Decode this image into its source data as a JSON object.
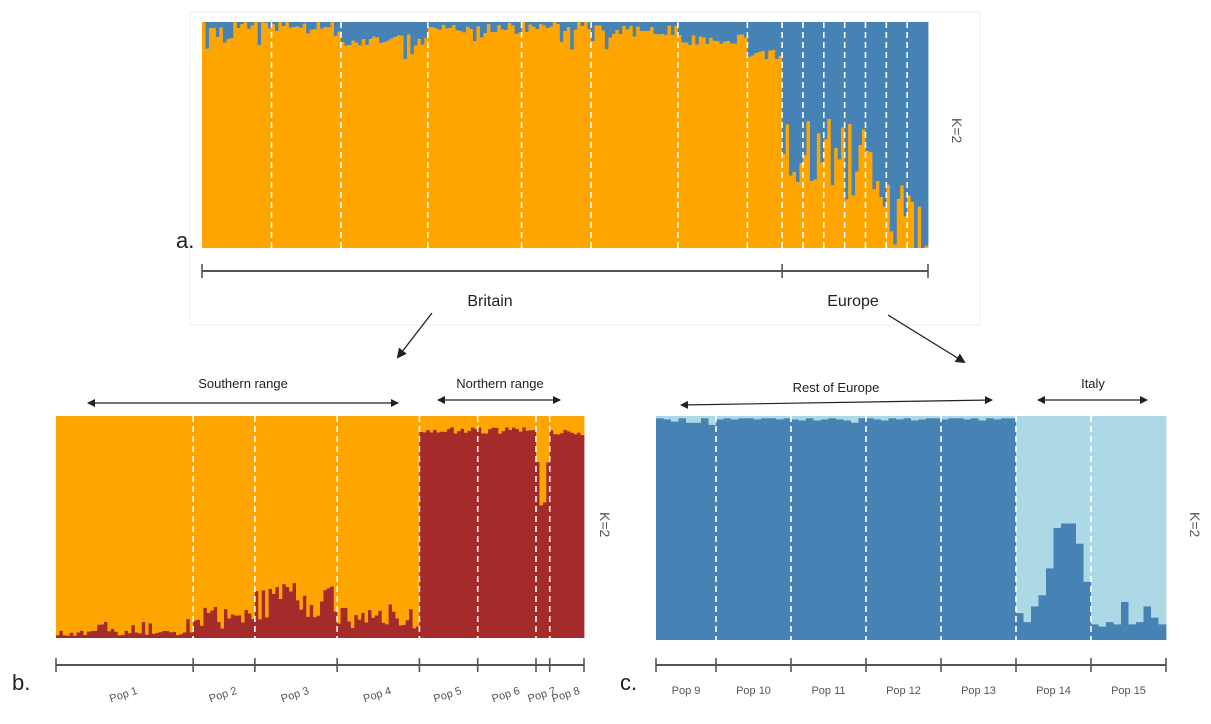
{
  "colors": {
    "orange": "#FFA500",
    "steel_blue": "#4682B4",
    "dark_red": "#A52A2A",
    "light_blue": "#ADD8E6",
    "axis": "#555555"
  },
  "chart_data": [
    {
      "id": "a",
      "type": "bar",
      "panel_label": "a.",
      "k_label": "K=2",
      "stacked": true,
      "ylim": [
        0,
        1
      ],
      "groups": [
        {
          "label": "Britain",
          "n_clusters": 8
        },
        {
          "label": "Europe",
          "n_clusters": 7
        }
      ],
      "clusters": [
        {
          "n": 20,
          "blue": 0.01
        },
        {
          "n": 20,
          "blue": 0.01
        },
        {
          "n": 25,
          "blue": 0.08
        },
        {
          "n": 27,
          "blue": 0.03
        },
        {
          "n": 20,
          "blue": 0.02
        },
        {
          "n": 25,
          "blue": 0.04
        },
        {
          "n": 20,
          "blue": 0.08
        },
        {
          "n": 10,
          "blue": 0.14
        },
        {
          "n": 6,
          "blue": 0.55
        },
        {
          "n": 6,
          "blue": 0.6
        },
        {
          "n": 6,
          "blue": 0.57
        },
        {
          "n": 6,
          "blue": 0.62
        },
        {
          "n": 6,
          "blue": 0.68
        },
        {
          "n": 6,
          "blue": 0.88
        },
        {
          "n": 6,
          "blue": 0.93
        }
      ],
      "series": [
        {
          "name": "",
          "color": "#FFA500"
        },
        {
          "name": "",
          "color": "#4682B4"
        }
      ]
    },
    {
      "id": "b",
      "type": "bar",
      "panel_label": "b.",
      "k_label": "K=2",
      "stacked": true,
      "ylim": [
        0,
        1
      ],
      "range_labels": [
        "Southern range",
        "Northern range"
      ],
      "populations": [
        "Pop 1",
        "Pop 2",
        "Pop 3",
        "Pop 4",
        "Pop 5",
        "Pop 6",
        "Pop 7",
        "Pop 8"
      ],
      "pop_sizes": [
        40,
        18,
        24,
        24,
        17,
        17,
        4,
        10
      ],
      "red_fraction": [
        0.02,
        0.08,
        0.15,
        0.08,
        0.95,
        0.95,
        0.8,
        0.94
      ],
      "series": [
        {
          "name": "",
          "color": "#FFA500"
        },
        {
          "name": "",
          "color": "#A52A2A"
        }
      ]
    },
    {
      "id": "c",
      "type": "bar",
      "panel_label": "c.",
      "k_label": "K=2",
      "stacked": true,
      "ylim": [
        0,
        1
      ],
      "range_labels": [
        "Rest of Europe",
        "Italy"
      ],
      "populations": [
        "Pop 9",
        "Pop 10",
        "Pop 11",
        "Pop 12",
        "Pop 13",
        "Pop 14",
        "Pop 15"
      ],
      "pop_sizes": [
        8,
        10,
        10,
        10,
        10,
        10,
        10
      ],
      "blue_values": [
        [
          0.99,
          0.985,
          0.975,
          0.99,
          0.97,
          0.97,
          0.99,
          0.96
        ],
        [
          0.985,
          0.99,
          0.985,
          0.99,
          0.99,
          0.985,
          0.99,
          0.99,
          0.985,
          0.99
        ],
        [
          0.985,
          0.98,
          0.99,
          0.98,
          0.985,
          0.99,
          0.985,
          0.98,
          0.97,
          0.99
        ],
        [
          0.99,
          0.985,
          0.98,
          0.99,
          0.985,
          0.99,
          0.98,
          0.985,
          0.99,
          0.99
        ],
        [
          0.985,
          0.99,
          0.99,
          0.985,
          0.99,
          0.98,
          0.99,
          0.985,
          0.99,
          0.99
        ],
        [
          0.12,
          0.08,
          0.15,
          0.2,
          0.32,
          0.5,
          0.52,
          0.52,
          0.43,
          0.26
        ],
        [
          0.07,
          0.06,
          0.08,
          0.07,
          0.17,
          0.07,
          0.08,
          0.15,
          0.1,
          0.07
        ]
      ],
      "series": [
        {
          "name": "",
          "color": "#4682B4"
        },
        {
          "name": "",
          "color": "#ADD8E6"
        }
      ]
    }
  ]
}
